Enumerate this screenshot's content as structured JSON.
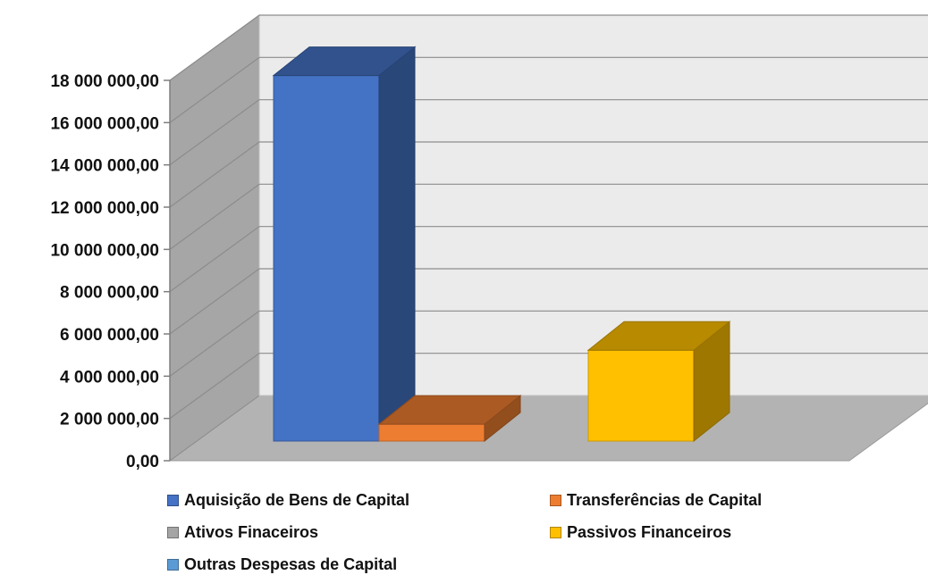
{
  "chart_data": {
    "type": "bar",
    "title": "",
    "xlabel": "",
    "ylabel": "",
    "ylim": [
      0,
      18000000
    ],
    "y_ticks": [
      "0,00",
      "2 000 000,00",
      "4 000 000,00",
      "6 000 000,00",
      "8 000 000,00",
      "10 000 000,00",
      "12 000 000,00",
      "14 000 000,00",
      "16 000 000,00",
      "18 000 000,00"
    ],
    "grid": true,
    "three_d": true,
    "legend_position": "bottom",
    "series": [
      {
        "name": "Aquisição de Bens de Capital",
        "value": 17300000,
        "color": "#4472C4"
      },
      {
        "name": "Transferências de Capital",
        "value": 800000,
        "color": "#ED7D31"
      },
      {
        "name": "Ativos Finaceiros",
        "value": 0,
        "color": "#A5A5A5"
      },
      {
        "name": "Passivos Financeiros",
        "value": 4300000,
        "color": "#FFC000"
      },
      {
        "name": "Outras Despesas de Capital",
        "value": 0,
        "color": "#5B9BD5"
      }
    ]
  }
}
